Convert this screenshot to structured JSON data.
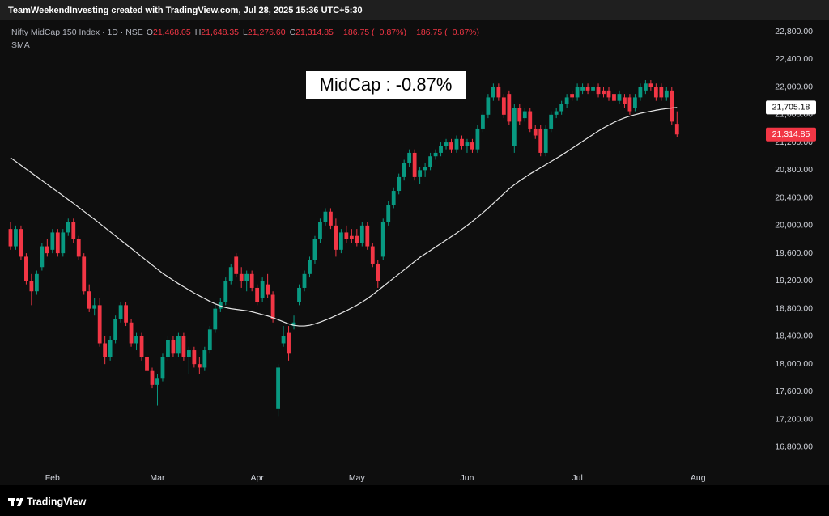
{
  "header": "TeamWeekendInvesting created with TradingView.com, Jul 28, 2025 15:36 UTC+5:30",
  "footer": "TradingView",
  "chart_data": {
    "type": "candlestick",
    "annotation": "MidCap : -0.87%",
    "legend_values": [
      {
        "key": "O",
        "value": "21,468.05"
      },
      {
        "key": "H",
        "value": "21,648.35"
      },
      {
        "key": "L",
        "value": "21,276.60"
      },
      {
        "key": "C",
        "value": "21,314.85"
      }
    ],
    "change": "−186.75 (−0.87%)",
    "price_labels": {
      "sma": "21,705.18",
      "close": "21,314.85"
    },
    "ylim": [
      16484,
      22964
    ],
    "yticks": [
      {
        "value": 16800,
        "label": "16,800.00"
      },
      {
        "value": 17200,
        "label": "17,200.00"
      },
      {
        "value": 17600,
        "label": "17,600.00"
      },
      {
        "value": 18000,
        "label": "18,000.00"
      },
      {
        "value": 18400,
        "label": "18,400.00"
      },
      {
        "value": 18800,
        "label": "18,800.00"
      },
      {
        "value": 19200,
        "label": "19,200.00"
      },
      {
        "value": 19600,
        "label": "19,600.00"
      },
      {
        "value": 20000,
        "label": "20,000.00"
      },
      {
        "value": 20400,
        "label": "20,400.00"
      },
      {
        "value": 20800,
        "label": "20,800.00"
      },
      {
        "value": 21200,
        "label": "21,200.00"
      },
      {
        "value": 21600,
        "label": "21,600.00"
      },
      {
        "value": 22000,
        "label": "22,000.00"
      },
      {
        "value": 22400,
        "label": "22,400.00"
      },
      {
        "value": 22800,
        "label": "22,800.00"
      }
    ],
    "xlim": [
      -2,
      143
    ],
    "xticks": [
      {
        "value": 8,
        "label": "Feb"
      },
      {
        "value": 28,
        "label": "Mar"
      },
      {
        "value": 47,
        "label": "Apr"
      },
      {
        "value": 66,
        "label": "May"
      },
      {
        "value": 87,
        "label": "Jun"
      },
      {
        "value": 108,
        "label": "Jul"
      },
      {
        "value": 131,
        "label": "Aug"
      }
    ],
    "grid": false,
    "series": [
      {
        "name": "Nifty MidCap 150 Index · 1D · NSE",
        "type": "candlestick",
        "up_color": "#089981",
        "down_color": "#f23645",
        "ohlc": [
          [
            19950,
            20050,
            19650,
            19700
          ],
          [
            19700,
            20000,
            19650,
            19950
          ],
          [
            19950,
            20000,
            19500,
            19550
          ],
          [
            19550,
            19600,
            19150,
            19200
          ],
          [
            19200,
            19300,
            18850,
            19050
          ],
          [
            19050,
            19350,
            19000,
            19300
          ],
          [
            19400,
            19750,
            19350,
            19700
          ],
          [
            19700,
            19800,
            19550,
            19600
          ],
          [
            19650,
            19950,
            19600,
            19900
          ],
          [
            19900,
            19950,
            19550,
            19600
          ],
          [
            19600,
            19950,
            19550,
            19900
          ],
          [
            19900,
            20100,
            19850,
            20050
          ],
          [
            20050,
            20100,
            19750,
            19800
          ],
          [
            19800,
            19850,
            19500,
            19550
          ],
          [
            19550,
            19600,
            19000,
            19050
          ],
          [
            19050,
            19150,
            18750,
            18800
          ],
          [
            18800,
            18950,
            18700,
            18850
          ],
          [
            18850,
            18950,
            18250,
            18300
          ],
          [
            18300,
            18400,
            18000,
            18100
          ],
          [
            18100,
            18400,
            18050,
            18350
          ],
          [
            18350,
            18700,
            18300,
            18650
          ],
          [
            18650,
            18900,
            18600,
            18850
          ],
          [
            18850,
            18900,
            18550,
            18600
          ],
          [
            18600,
            18650,
            18250,
            18300
          ],
          [
            18300,
            18450,
            18200,
            18400
          ],
          [
            18400,
            18450,
            18050,
            18100
          ],
          [
            18100,
            18150,
            17850,
            17900
          ],
          [
            17900,
            17950,
            17650,
            17700
          ],
          [
            17700,
            17850,
            17400,
            17800
          ],
          [
            17800,
            18150,
            17750,
            18100
          ],
          [
            18100,
            18400,
            18050,
            18350
          ],
          [
            18350,
            18400,
            18100,
            18150
          ],
          [
            18150,
            18450,
            18100,
            18400
          ],
          [
            18400,
            18450,
            18050,
            18100
          ],
          [
            18100,
            18250,
            17850,
            18200
          ],
          [
            18200,
            18250,
            17950,
            18000
          ],
          [
            18000,
            18100,
            17850,
            17950
          ],
          [
            17950,
            18250,
            17900,
            18200
          ],
          [
            18200,
            18550,
            18150,
            18500
          ],
          [
            18500,
            18850,
            18450,
            18800
          ],
          [
            18800,
            18950,
            18750,
            18900
          ],
          [
            18900,
            19250,
            18850,
            19200
          ],
          [
            19200,
            19450,
            19150,
            19400
          ],
          [
            19550,
            19600,
            19250,
            19300
          ],
          [
            19300,
            19400,
            19100,
            19200
          ],
          [
            19200,
            19350,
            19050,
            19300
          ],
          [
            19300,
            19350,
            19050,
            19100
          ],
          [
            19100,
            19150,
            18850,
            18900
          ],
          [
            18950,
            19250,
            18900,
            19200
          ],
          [
            19150,
            19300,
            18950,
            19000
          ],
          [
            19000,
            19050,
            18600,
            18650
          ],
          [
            17350,
            18000,
            17250,
            17950
          ],
          [
            18300,
            18550,
            18250,
            18400
          ],
          [
            18450,
            18550,
            18050,
            18150
          ],
          [
            18550,
            18700,
            18500,
            18600
          ],
          [
            18900,
            19150,
            18850,
            19100
          ],
          [
            19100,
            19350,
            19050,
            19300
          ],
          [
            19300,
            19550,
            19250,
            19500
          ],
          [
            19500,
            19850,
            19450,
            19800
          ],
          [
            19800,
            20100,
            19750,
            20050
          ],
          [
            20050,
            20250,
            20000,
            20200
          ],
          [
            20200,
            20250,
            19950,
            20000
          ],
          [
            20000,
            20100,
            19550,
            19650
          ],
          [
            19650,
            19950,
            19600,
            19900
          ],
          [
            19900,
            20000,
            19750,
            19800
          ],
          [
            19850,
            19950,
            19750,
            19800
          ],
          [
            19850,
            19950,
            19700,
            19750
          ],
          [
            19750,
            20050,
            19700,
            20000
          ],
          [
            20000,
            20050,
            19650,
            19700
          ],
          [
            19700,
            19750,
            19400,
            19450
          ],
          [
            19450,
            19500,
            19100,
            19200
          ],
          [
            19550,
            20100,
            19500,
            20050
          ],
          [
            20050,
            20350,
            20000,
            20300
          ],
          [
            20300,
            20550,
            20250,
            20500
          ],
          [
            20500,
            20750,
            20450,
            20700
          ],
          [
            20700,
            20950,
            20650,
            20900
          ],
          [
            20900,
            21100,
            20850,
            21050
          ],
          [
            21050,
            21100,
            20650,
            20700
          ],
          [
            20700,
            20850,
            20600,
            20800
          ],
          [
            20800,
            20900,
            20700,
            20850
          ],
          [
            20850,
            21050,
            20800,
            21000
          ],
          [
            21000,
            21100,
            20950,
            21050
          ],
          [
            21050,
            21200,
            21000,
            21150
          ],
          [
            21150,
            21250,
            21100,
            21200
          ],
          [
            21200,
            21250,
            21050,
            21100
          ],
          [
            21100,
            21300,
            21050,
            21250
          ],
          [
            21250,
            21300,
            21100,
            21150
          ],
          [
            21150,
            21250,
            21050,
            21200
          ],
          [
            21200,
            21250,
            21050,
            21100
          ],
          [
            21100,
            21450,
            21050,
            21400
          ],
          [
            21400,
            21650,
            21350,
            21600
          ],
          [
            21600,
            21900,
            21550,
            21850
          ],
          [
            21850,
            22050,
            21800,
            22000
          ],
          [
            22000,
            22050,
            21800,
            21850
          ],
          [
            21850,
            21900,
            21550,
            21600
          ],
          [
            21900,
            21950,
            21450,
            21500
          ],
          [
            21150,
            21750,
            21050,
            21700
          ],
          [
            21700,
            21750,
            21450,
            21500
          ],
          [
            21550,
            21700,
            21500,
            21650
          ],
          [
            21650,
            21700,
            21350,
            21400
          ],
          [
            21400,
            21450,
            21250,
            21300
          ],
          [
            21400,
            21450,
            21000,
            21050
          ],
          [
            21050,
            21450,
            21000,
            21400
          ],
          [
            21400,
            21650,
            21350,
            21600
          ],
          [
            21600,
            21700,
            21550,
            21650
          ],
          [
            21650,
            21800,
            21600,
            21750
          ],
          [
            21750,
            21900,
            21700,
            21850
          ],
          [
            21900,
            21950,
            21800,
            21850
          ],
          [
            21850,
            22050,
            21800,
            22000
          ],
          [
            21950,
            22050,
            21900,
            22000
          ],
          [
            22000,
            22050,
            21900,
            21950
          ],
          [
            21950,
            22050,
            21900,
            22000
          ],
          [
            22000,
            22050,
            21850,
            21900
          ],
          [
            21950,
            22000,
            21850,
            21900
          ],
          [
            21950,
            22000,
            21800,
            21850
          ],
          [
            21900,
            21950,
            21750,
            21800
          ],
          [
            21800,
            21950,
            21750,
            21900
          ],
          [
            21850,
            21900,
            21700,
            21750
          ],
          [
            21850,
            21900,
            21600,
            21650
          ],
          [
            21700,
            21900,
            21650,
            21850
          ],
          [
            21850,
            22050,
            21800,
            22000
          ],
          [
            21950,
            22100,
            21900,
            22050
          ],
          [
            22050,
            22100,
            21950,
            22000
          ],
          [
            22000,
            22050,
            21800,
            21850
          ],
          [
            22000,
            22050,
            21800,
            21850
          ],
          [
            21850,
            22000,
            21800,
            21950
          ],
          [
            21950,
            22000,
            21450,
            21500
          ],
          [
            21468.05,
            21648.35,
            21276.6,
            21314.85
          ]
        ]
      },
      {
        "name": "SMA",
        "type": "line",
        "color": "#e6e6e6",
        "values": [
          20980,
          20925,
          20870,
          20815,
          20760,
          20705,
          20650,
          20595,
          20540,
          20485,
          20430,
          20375,
          20320,
          20262,
          20205,
          20148,
          20090,
          20030,
          19970,
          19910,
          19850,
          19790,
          19730,
          19670,
          19610,
          19550,
          19490,
          19430,
          19370,
          19310,
          19260,
          19210,
          19160,
          19115,
          19070,
          19025,
          18985,
          18945,
          18905,
          18870,
          18840,
          18815,
          18800,
          18790,
          18780,
          18770,
          18755,
          18735,
          18715,
          18695,
          18670,
          18640,
          18610,
          18580,
          18560,
          18550,
          18550,
          18560,
          18580,
          18605,
          18635,
          18665,
          18700,
          18735,
          18770,
          18810,
          18850,
          18895,
          18945,
          19000,
          19060,
          19120,
          19180,
          19240,
          19300,
          19360,
          19420,
          19480,
          19540,
          19590,
          19640,
          19690,
          19740,
          19790,
          19840,
          19890,
          19945,
          20000,
          20060,
          20120,
          20185,
          20250,
          20320,
          20390,
          20460,
          20530,
          20590,
          20645,
          20695,
          20745,
          20790,
          20835,
          20880,
          20925,
          20970,
          21015,
          21065,
          21115,
          21165,
          21215,
          21265,
          21315,
          21365,
          21410,
          21450,
          21490,
          21525,
          21555,
          21580,
          21600,
          21620,
          21635,
          21650,
          21665,
          21678,
          21688,
          21697,
          21705.18
        ]
      }
    ]
  }
}
